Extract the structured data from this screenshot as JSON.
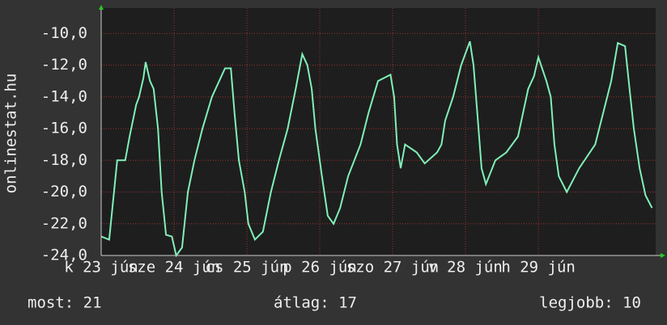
{
  "chart_data": {
    "type": "line",
    "y_label": "onlinestat.hu",
    "x": [
      0,
      0.11,
      0.22,
      0.33,
      0.39,
      0.48,
      0.52,
      0.58,
      0.61,
      0.67,
      0.72,
      0.78,
      0.83,
      0.89,
      0.97,
      1.03,
      1.11,
      1.19,
      1.28,
      1.39,
      1.52,
      1.7,
      1.78,
      1.83,
      1.89,
      1.97,
      2.02,
      2.11,
      2.22,
      2.33,
      2.44,
      2.56,
      2.67,
      2.76,
      2.83,
      2.89,
      2.94,
      3.03,
      3.11,
      3.19,
      3.28,
      3.39,
      3.56,
      3.67,
      3.8,
      3.97,
      4.02,
      4.06,
      4.11,
      4.17,
      4.33,
      4.44,
      4.61,
      4.67,
      4.72,
      4.83,
      4.94,
      5.06,
      5.11,
      5.17,
      5.22,
      5.28,
      5.41,
      5.56,
      5.72,
      5.86,
      5.94,
      6.0,
      6.11,
      6.17,
      6.22,
      6.28,
      6.39,
      6.56,
      6.78,
      6.89,
      7.0,
      7.09,
      7.19,
      7.24,
      7.31,
      7.39,
      7.47,
      7.56
    ],
    "series": [
      {
        "name": "onlinestat.hu",
        "color": "#80f0b8",
        "values": [
          -22.8,
          -23,
          -18,
          -18,
          -16.5,
          -14.5,
          -14,
          -12.8,
          -11.8,
          -13,
          -13.5,
          -16,
          -20,
          -22.7,
          -22.8,
          -24,
          -23.5,
          -20,
          -18,
          -16,
          -14,
          -12.2,
          -12.2,
          -15,
          -18,
          -20,
          -22,
          -23,
          -22.5,
          -20,
          -18,
          -16,
          -13.5,
          -11.3,
          -12,
          -13.5,
          -16,
          -19,
          -21.5,
          -22,
          -21,
          -19,
          -17,
          -15,
          -13,
          -12.6,
          -14,
          -17,
          -18.5,
          -17,
          -17.5,
          -18.2,
          -17.5,
          -17,
          -15.5,
          -14,
          -12,
          -10.5,
          -12,
          -15.5,
          -18.5,
          -19.5,
          -18,
          -17.5,
          -16.5,
          -13.5,
          -12.7,
          -11.5,
          -13,
          -14,
          -17,
          -19,
          -20,
          -18.5,
          -17,
          -15,
          -13,
          -10.6,
          -10.8,
          -13,
          -16,
          -18.5,
          -20.2,
          -21
        ]
      }
    ],
    "xlim": [
      0,
      7.61
    ],
    "xticks": [
      {
        "value": 0,
        "label": "k 23 jún"
      },
      {
        "value": 1,
        "label": "sze 24 jún"
      },
      {
        "value": 2,
        "label": "cs 25 jún"
      },
      {
        "value": 3,
        "label": "p 26 jún"
      },
      {
        "value": 4,
        "label": "szo 27 jún"
      },
      {
        "value": 5,
        "label": "v 28 jún"
      },
      {
        "value": 6,
        "label": "h 29 jún"
      }
    ],
    "ylim": [
      -24,
      -8.4
    ],
    "yticks": [
      {
        "value": -24,
        "label": "-24,0"
      },
      {
        "value": -22,
        "label": "-22,0"
      },
      {
        "value": -20,
        "label": "-20,0"
      },
      {
        "value": -18,
        "label": "-18,0"
      },
      {
        "value": -16,
        "label": "-16,0"
      },
      {
        "value": -14,
        "label": "-14,0"
      },
      {
        "value": -12,
        "label": "-12,0"
      },
      {
        "value": -10,
        "label": "-10,0"
      }
    ],
    "grid": true,
    "legend": [
      "most: 21",
      "átlag: 17",
      "legjobb: 10"
    ]
  }
}
